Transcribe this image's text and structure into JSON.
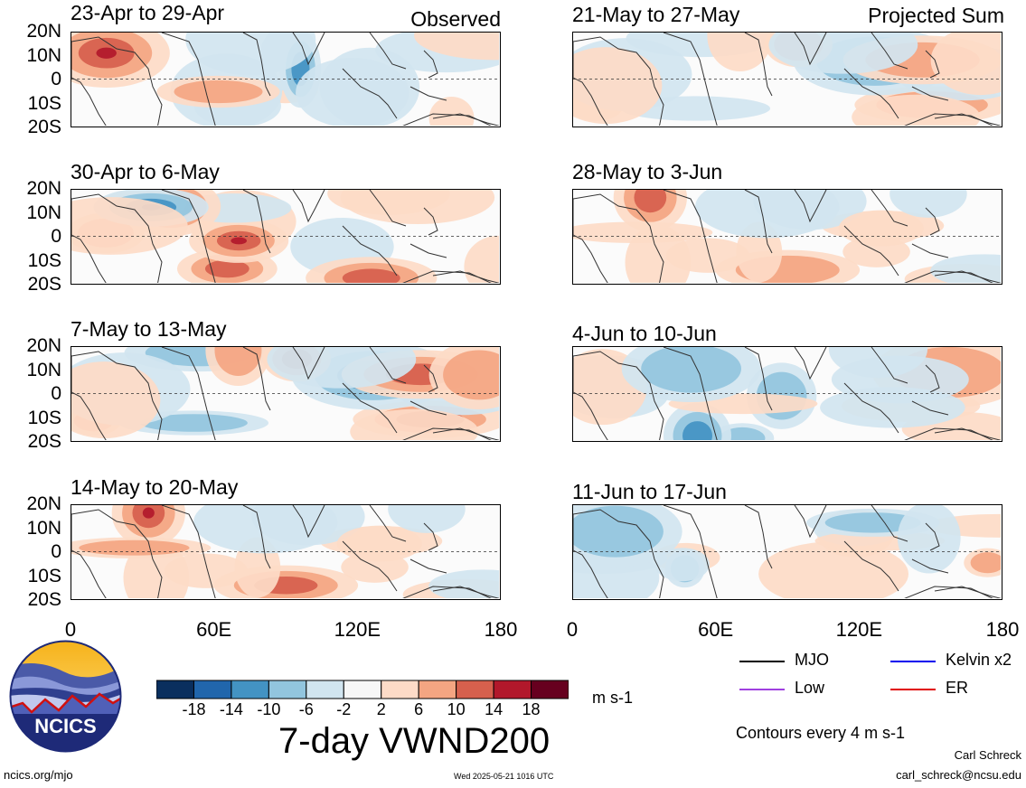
{
  "left_label": "Observed",
  "right_label": "Projected Sum",
  "lat_ticks": [
    "20N",
    "10N",
    "0",
    "10S",
    "20S"
  ],
  "lon_ticks": [
    "0",
    "60E",
    "120E",
    "180"
  ],
  "panels_left": [
    {
      "title": "23-Apr to 29-Apr"
    },
    {
      "title": "30-Apr to 6-May"
    },
    {
      "title": "7-May to 13-May"
    },
    {
      "title": "14-May to 20-May"
    }
  ],
  "panels_right": [
    {
      "title": "21-May to 27-May"
    },
    {
      "title": "28-May to 3-Jun"
    },
    {
      "title": "4-Jun to 10-Jun"
    },
    {
      "title": "11-Jun to 17-Jun"
    }
  ],
  "colorbar": {
    "levels": [
      "-18",
      "-14",
      "-10",
      "-6",
      "-2",
      "2",
      "6",
      "10",
      "14",
      "18"
    ],
    "colors": [
      "#0a2f5e",
      "#2166ac",
      "#4393c3",
      "#92c5de",
      "#d1e5f0",
      "#f7f7f7",
      "#fddbc7",
      "#f4a582",
      "#d6604d",
      "#b2182b",
      "#67001f"
    ],
    "units": "m s-1"
  },
  "main_title": "7-day VWND200",
  "legend": [
    {
      "label": "MJO",
      "color": "#000000"
    },
    {
      "label": "Kelvin x2",
      "color": "#0000ee"
    },
    {
      "label": "Low",
      "color": "#a040e0"
    },
    {
      "label": "ER",
      "color": "#e00000"
    }
  ],
  "contour_note": "Contours every 4 m s-1",
  "logo_text": "NCICS",
  "footer_left": "ncics.org/mjo",
  "footer_center": "Wed 2025-05-21 1016 UTC",
  "footer_author": "Carl Schreck",
  "footer_email": "carl_schreck@ncsu.edu"
}
